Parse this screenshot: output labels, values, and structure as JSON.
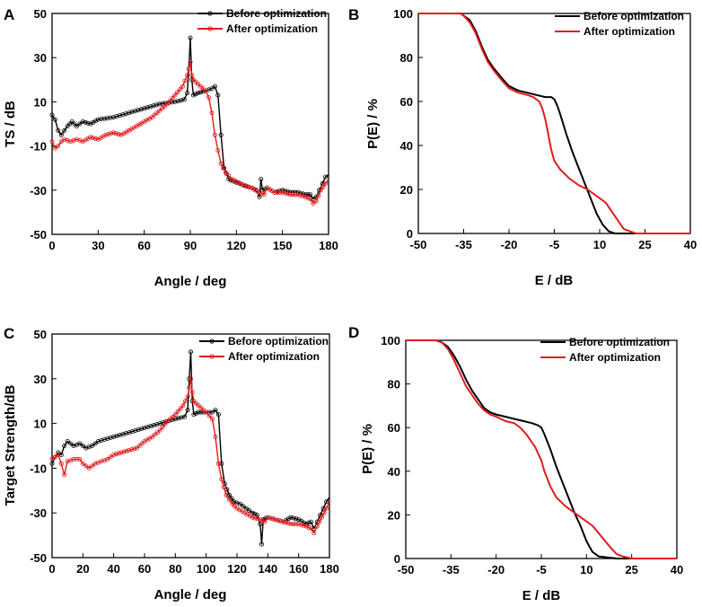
{
  "figure": {
    "colors": {
      "before": "#000000",
      "after": "#e31a1c"
    }
  },
  "chart_data": [
    {
      "panel": "A",
      "type": "line",
      "markers": "circle",
      "xlabel": "Angle / deg",
      "ylabel": "TS / dB",
      "xlim": [
        0,
        180
      ],
      "ylim": [
        -50,
        50
      ],
      "xticks": [
        0,
        30,
        60,
        90,
        120,
        150,
        180
      ],
      "yticks": [
        -50,
        -30,
        -10,
        10,
        30,
        50
      ],
      "legend": [
        "Before optimization",
        "After optimization"
      ],
      "series": [
        {
          "name": "Before optimization",
          "color": "#000000",
          "x": [
            0,
            2,
            4,
            6,
            8,
            10,
            13,
            16,
            20,
            25,
            30,
            40,
            50,
            60,
            70,
            80,
            86,
            88,
            89,
            90,
            91,
            92,
            95,
            100,
            104,
            106,
            108,
            110,
            112,
            115,
            118,
            122,
            126,
            130,
            133,
            135,
            136,
            137,
            140,
            145,
            150,
            155,
            160,
            165,
            168,
            170,
            172,
            174,
            176,
            178,
            180
          ],
          "y": [
            4,
            2,
            -3,
            -5,
            -3,
            -1,
            1,
            -1,
            1,
            0,
            2,
            3,
            5,
            7,
            9,
            10,
            11,
            14,
            25,
            39,
            20,
            13,
            14,
            15,
            16,
            17,
            13,
            -5,
            -20,
            -25,
            -26,
            -27,
            -28,
            -29,
            -30,
            -33,
            -25,
            -30,
            -29,
            -31,
            -30,
            -31,
            -31,
            -32,
            -32,
            -34,
            -33,
            -30,
            -27,
            -24,
            -23
          ]
        },
        {
          "name": "After optimization",
          "color": "#e31a1c",
          "x": [
            0,
            2,
            4,
            6,
            8,
            12,
            16,
            20,
            25,
            30,
            35,
            40,
            45,
            50,
            55,
            60,
            65,
            70,
            75,
            80,
            85,
            88,
            89,
            90,
            91,
            92,
            95,
            100,
            102,
            104,
            106,
            108,
            110,
            113,
            117,
            120,
            125,
            130,
            135,
            138,
            140,
            145,
            150,
            155,
            160,
            165,
            168,
            170,
            172,
            175,
            178,
            180
          ],
          "y": [
            -8,
            -11,
            -10,
            -8,
            -7,
            -8,
            -7,
            -8,
            -6,
            -7,
            -5,
            -4,
            -5,
            -3,
            -1,
            1,
            3,
            6,
            9,
            13,
            17,
            22,
            25,
            28,
            22,
            20,
            18,
            15,
            12,
            5,
            -5,
            -12,
            -18,
            -22,
            -25,
            -26,
            -28,
            -29,
            -31,
            -32,
            -29,
            -31,
            -31,
            -32,
            -32,
            -33,
            -34,
            -36,
            -35,
            -30,
            -27,
            -25
          ]
        }
      ]
    },
    {
      "panel": "B",
      "type": "line",
      "xlabel": "E / dB",
      "ylabel": "P(E) / %",
      "xlim": [
        -50,
        40
      ],
      "ylim": [
        0,
        100
      ],
      "xticks": [
        -50,
        -35,
        -20,
        -5,
        10,
        25,
        40
      ],
      "xtick_labels": [
        "-50",
        "-35",
        "-20",
        "-5",
        "10",
        "25",
        "40"
      ],
      "yticks": [
        0,
        20,
        40,
        60,
        80,
        100
      ],
      "legend": [
        "Before optimization",
        "After optimization"
      ],
      "series": [
        {
          "name": "Before optimization",
          "color": "#000000",
          "x": [
            -50,
            -36,
            -35,
            -33,
            -31,
            -29,
            -27,
            -25,
            -22,
            -20,
            -17,
            -14,
            -11,
            -8,
            -6,
            -5,
            -4,
            -3,
            -1,
            1,
            3,
            5,
            7,
            9,
            11,
            13,
            15,
            20,
            30,
            40
          ],
          "y": [
            100,
            100,
            99,
            97,
            92,
            85,
            79,
            75,
            70,
            67,
            65,
            64,
            63,
            62,
            62,
            61,
            58,
            54,
            45,
            37,
            30,
            23,
            16,
            9,
            4,
            1,
            0,
            0,
            0,
            0
          ]
        },
        {
          "name": "After optimization",
          "color": "#e31a1c",
          "x": [
            -50,
            -36,
            -35,
            -33,
            -31,
            -29,
            -27,
            -25,
            -22,
            -20,
            -17,
            -14,
            -12,
            -10,
            -9,
            -8,
            -7,
            -6,
            -5,
            -3,
            0,
            3,
            6,
            9,
            12,
            14,
            16,
            18,
            20,
            22,
            25,
            30,
            40
          ],
          "y": [
            100,
            100,
            99,
            96,
            91,
            84,
            78,
            74,
            69,
            66,
            64,
            63,
            62,
            60,
            57,
            52,
            45,
            38,
            33,
            29,
            25,
            22,
            20,
            17,
            14,
            10,
            6,
            2,
            1,
            0,
            0,
            0,
            0
          ]
        }
      ]
    },
    {
      "panel": "C",
      "type": "line",
      "markers": "circle",
      "xlabel": "Angle / deg",
      "ylabel": "Target Strength/dB",
      "xlim": [
        0,
        180
      ],
      "ylim": [
        -50,
        50
      ],
      "xticks": [
        0,
        20,
        40,
        60,
        80,
        100,
        120,
        140,
        160,
        180
      ],
      "yticks": [
        -50,
        -30,
        -10,
        10,
        30,
        50
      ],
      "legend": [
        "Before optimization",
        "After optimization"
      ],
      "series": [
        {
          "name": "Before optimization",
          "color": "#000000",
          "x": [
            0,
            2,
            4,
            6,
            8,
            10,
            14,
            18,
            22,
            26,
            30,
            40,
            50,
            60,
            70,
            80,
            86,
            88,
            89,
            90,
            91,
            92,
            95,
            100,
            104,
            106,
            108,
            110,
            112,
            115,
            118,
            122,
            126,
            130,
            133,
            135,
            136,
            137,
            140,
            145,
            150,
            155,
            160,
            165,
            168,
            170,
            172,
            174,
            176,
            178,
            180
          ],
          "y": [
            -8,
            -5,
            -3,
            -4,
            0,
            2,
            0,
            1,
            -1,
            0,
            2,
            4,
            6,
            8,
            10,
            12,
            13,
            16,
            30,
            42,
            20,
            14,
            15,
            15,
            15,
            16,
            14,
            -8,
            -17,
            -22,
            -25,
            -26,
            -28,
            -30,
            -31,
            -35,
            -44,
            -33,
            -32,
            -33,
            -34,
            -32,
            -33,
            -35,
            -34,
            -37,
            -34,
            -31,
            -28,
            -25,
            -23
          ]
        },
        {
          "name": "After optimization",
          "color": "#e31a1c",
          "x": [
            0,
            2,
            4,
            6,
            8,
            10,
            14,
            18,
            20,
            24,
            28,
            32,
            36,
            40,
            45,
            50,
            55,
            60,
            65,
            70,
            75,
            80,
            85,
            88,
            89,
            90,
            91,
            92,
            95,
            100,
            104,
            106,
            108,
            110,
            113,
            117,
            120,
            125,
            130,
            135,
            138,
            140,
            145,
            150,
            155,
            160,
            165,
            168,
            170,
            172,
            175,
            178,
            180
          ],
          "y": [
            -6,
            -5,
            -4,
            -8,
            -13,
            -7,
            -6,
            -6,
            -8,
            -10,
            -8,
            -7,
            -6,
            -4,
            -3,
            -2,
            -1,
            2,
            4,
            7,
            11,
            14,
            18,
            22,
            26,
            30,
            24,
            20,
            18,
            15,
            12,
            4,
            -8,
            -15,
            -22,
            -26,
            -28,
            -30,
            -32,
            -33,
            -34,
            -32,
            -33,
            -34,
            -35,
            -35,
            -36,
            -37,
            -39,
            -36,
            -32,
            -28,
            -25
          ]
        }
      ]
    },
    {
      "panel": "D",
      "type": "line",
      "xlabel": "E / dB",
      "ylabel": "P(E) / %",
      "xlim": [
        -50,
        40
      ],
      "ylim": [
        0,
        100
      ],
      "xticks": [
        -50,
        -35,
        -20,
        -5,
        10,
        25,
        40
      ],
      "xtick_labels": [
        "-50",
        "-35",
        "-20",
        "-5",
        "10",
        "25",
        "40"
      ],
      "yticks": [
        0,
        20,
        40,
        60,
        80,
        100
      ],
      "legend": [
        "Before optimization",
        "After optimization"
      ],
      "series": [
        {
          "name": "Before optimization",
          "color": "#000000",
          "x": [
            -50,
            -40,
            -38,
            -36,
            -34,
            -32,
            -30,
            -28,
            -26,
            -24,
            -22,
            -20,
            -17,
            -14,
            -11,
            -8,
            -6,
            -5,
            -4,
            -2,
            0,
            2,
            4,
            6,
            8,
            10,
            12,
            14,
            20,
            30,
            40
          ],
          "y": [
            100,
            100,
            99,
            97,
            93,
            88,
            82,
            77,
            73,
            69,
            67,
            66,
            65,
            64,
            63,
            62,
            61,
            60,
            57,
            50,
            42,
            35,
            28,
            21,
            15,
            8,
            3,
            1,
            0,
            0,
            0
          ]
        },
        {
          "name": "After optimization",
          "color": "#e31a1c",
          "x": [
            -50,
            -40,
            -38,
            -36,
            -34,
            -32,
            -30,
            -28,
            -26,
            -24,
            -22,
            -20,
            -17,
            -14,
            -12,
            -10,
            -8,
            -7,
            -6,
            -5,
            -4,
            -2,
            0,
            3,
            6,
            9,
            12,
            15,
            18,
            20,
            22,
            25,
            30,
            40
          ],
          "y": [
            100,
            100,
            99,
            96,
            91,
            85,
            79,
            75,
            71,
            68,
            66,
            65,
            63,
            62,
            60,
            57,
            53,
            51,
            48,
            45,
            40,
            33,
            28,
            24,
            21,
            18,
            15,
            10,
            5,
            2,
            1,
            0,
            0,
            0
          ]
        }
      ]
    }
  ]
}
